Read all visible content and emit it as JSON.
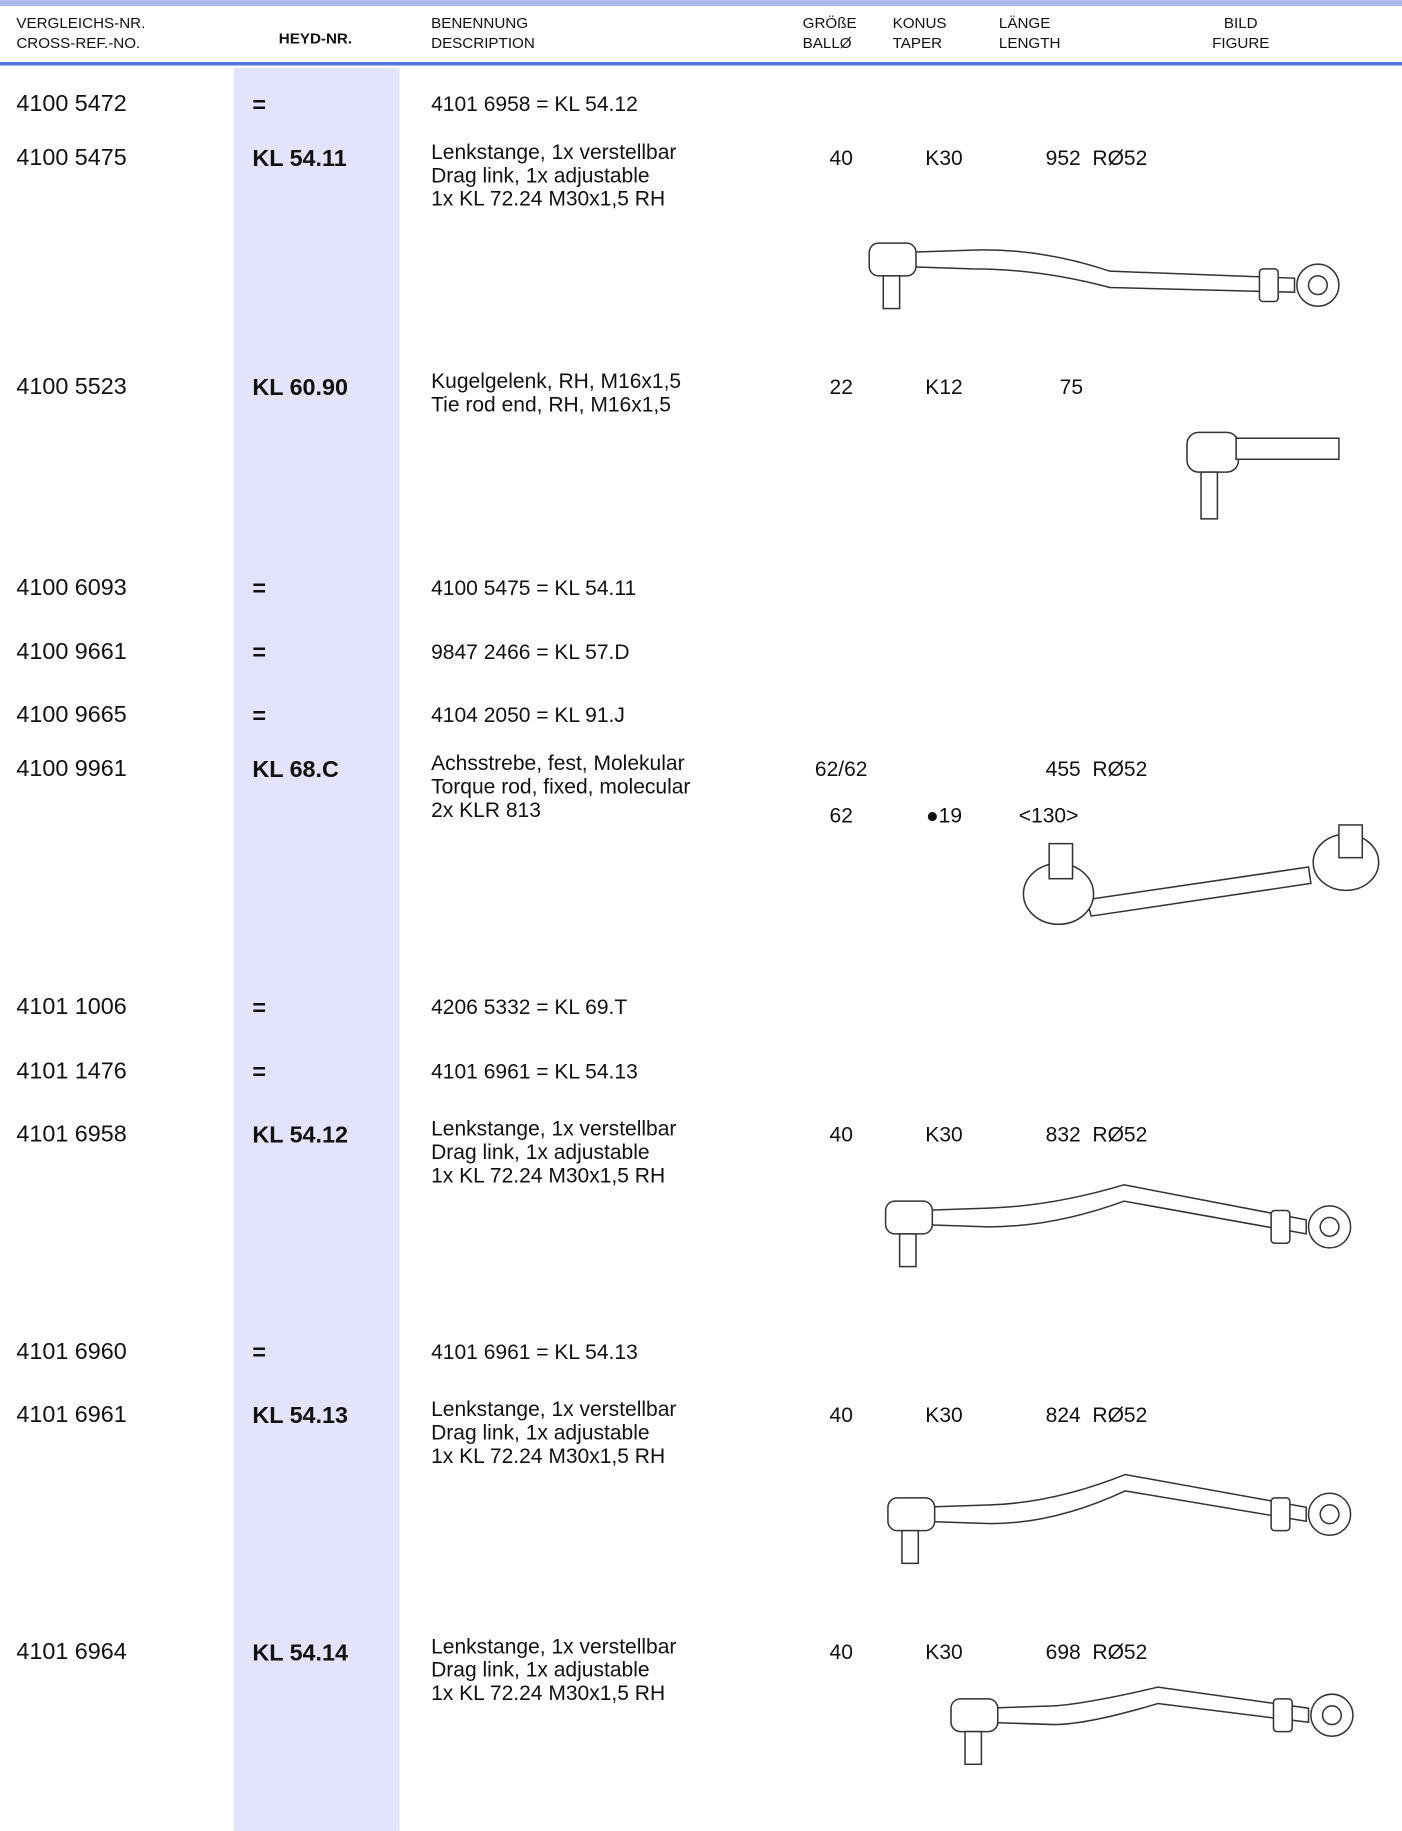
{
  "header": {
    "cross_ref": [
      "VERGLEICHS-NR.",
      "CROSS-REF.-NO."
    ],
    "heyd": "HEYD-NR.",
    "description": [
      "BENENNUNG",
      "DESCRIPTION"
    ],
    "size": [
      "GRÖßE",
      "BALLØ"
    ],
    "taper": [
      "KONUS",
      "TAPER"
    ],
    "length": [
      "LÄNGE",
      "LENGTH"
    ],
    "figure": [
      "BILD",
      "FIGURE"
    ]
  },
  "rows": [
    {
      "cross_ref": "4100 5472",
      "heyd": "=",
      "description": [
        "4101 6958 = KL 54.12"
      ]
    },
    {
      "cross_ref": "4100 5475",
      "heyd": "KL 54.11",
      "description": [
        "Lenkstange, 1x verstellbar",
        "Drag link, 1x adjustable",
        "1x KL 72.24 M30x1,5 RH"
      ],
      "specs": [
        {
          "size": "40",
          "taper": "K30",
          "length": "952  RØ52"
        }
      ]
    },
    {
      "cross_ref": "4100 5523",
      "heyd": "KL 60.90",
      "description": [
        "Kugelgelenk, RH, M16x1,5",
        "Tie rod end, RH, M16x1,5"
      ],
      "specs": [
        {
          "size": "22",
          "taper": "K12",
          "length": "75"
        }
      ]
    },
    {
      "cross_ref": "4100 6093",
      "heyd": "=",
      "description": [
        "4100 5475 = KL 54.11"
      ]
    },
    {
      "cross_ref": "4100 9661",
      "heyd": "=",
      "description": [
        "9847 2466 = KL 57.D"
      ]
    },
    {
      "cross_ref": "4100 9665",
      "heyd": "=",
      "description": [
        "4104 2050 = KL 91.J"
      ]
    },
    {
      "cross_ref": "4100 9961",
      "heyd": "KL 68.C",
      "description": [
        "Achsstrebe, fest, Molekular",
        "Torque rod, fixed, molecular",
        "2x KLR 813"
      ],
      "specs": [
        {
          "size": "62/62",
          "length": "455  RØ52"
        },
        {
          "size": "62",
          "taper": "●19",
          "length": "<130>"
        }
      ]
    },
    {
      "cross_ref": "4101 1006",
      "heyd": "=",
      "description": [
        "4206 5332 = KL 69.T"
      ]
    },
    {
      "cross_ref": "4101 1476",
      "heyd": "=",
      "description": [
        "4101 6961 = KL 54.13"
      ]
    },
    {
      "cross_ref": "4101 6958",
      "heyd": "KL 54.12",
      "description": [
        "Lenkstange, 1x verstellbar",
        "Drag link, 1x adjustable",
        "1x KL 72.24 M30x1,5 RH"
      ],
      "specs": [
        {
          "size": "40",
          "taper": "K30",
          "length": "832  RØ52"
        }
      ]
    },
    {
      "cross_ref": "4101 6960",
      "heyd": "=",
      "description": [
        "4101 6961 = KL 54.13"
      ]
    },
    {
      "cross_ref": "4101 6961",
      "heyd": "KL 54.13",
      "description": [
        "Lenkstange, 1x verstellbar",
        "Drag link, 1x adjustable",
        "1x KL 72.24 M30x1,5 RH"
      ],
      "specs": [
        {
          "size": "40",
          "taper": "K30",
          "length": "824  RØ52"
        }
      ]
    },
    {
      "cross_ref": "4101 6964",
      "heyd": "KL 54.14",
      "description": [
        "Lenkstange, 1x verstellbar",
        "Drag link, 1x adjustable",
        "1x KL 72.24 M30x1,5 RH"
      ],
      "specs": [
        {
          "size": "40",
          "taper": "K30",
          "length": "698  RØ52"
        }
      ]
    }
  ]
}
